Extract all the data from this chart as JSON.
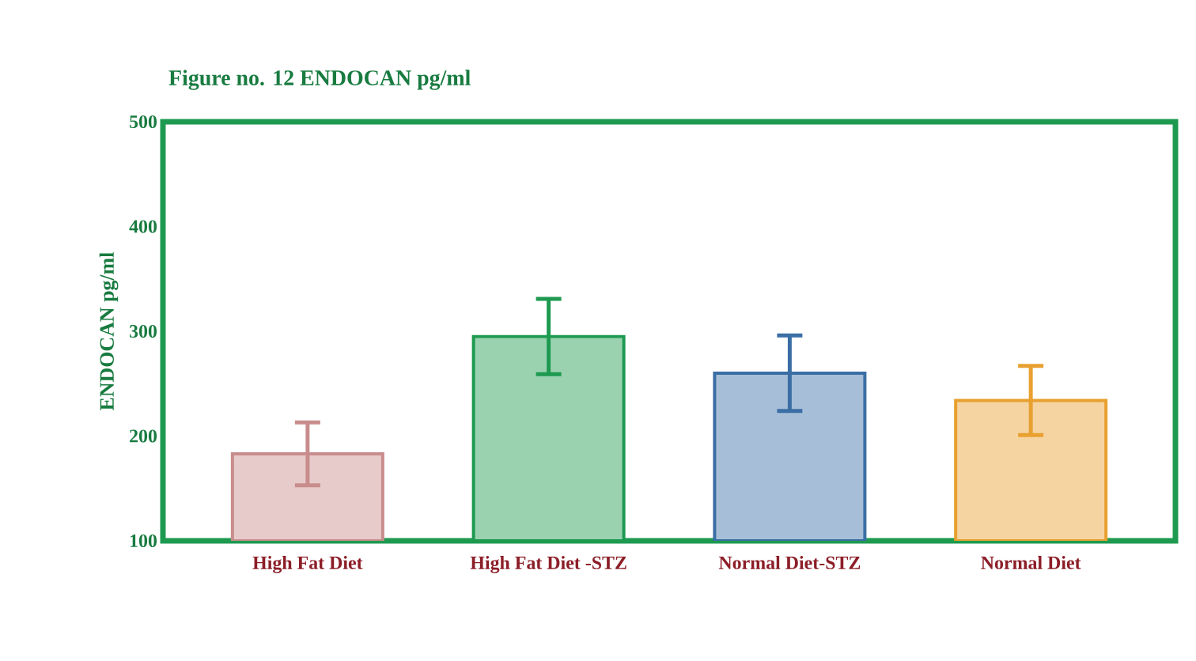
{
  "chart_data": {
    "type": "bar",
    "title": "Figure no. 12 ENDOCAN pg/ml",
    "ylabel": "ENDOCAN pg/ml",
    "categories": [
      "High Fat Diet",
      "High Fat Diet -STZ",
      "Normal Diet-STZ",
      "Normal Diet"
    ],
    "values": [
      183,
      295,
      260,
      234
    ],
    "errors": [
      30,
      36,
      36,
      33
    ],
    "colors": [
      "#c98c8c",
      "#1e9a50",
      "#3a6ea5",
      "#e8a030"
    ],
    "ylim": [
      100,
      500
    ],
    "yticks": [
      100,
      200,
      300,
      400,
      500
    ]
  }
}
